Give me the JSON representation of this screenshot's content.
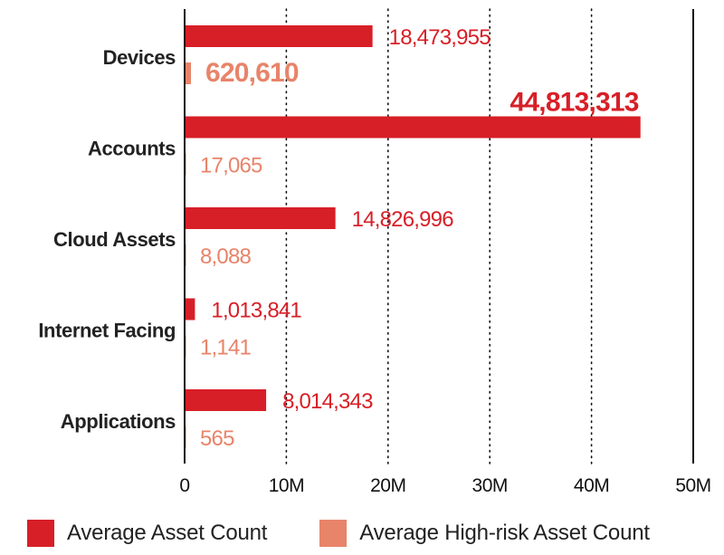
{
  "chart_data": {
    "type": "bar",
    "orientation": "horizontal",
    "categories": [
      "Devices",
      "Accounts",
      "Cloud Assets",
      "Internet Facing",
      "Applications"
    ],
    "series": [
      {
        "name": "Average Asset Count",
        "color": "#d71f27",
        "values": [
          18473955,
          44813313,
          14826996,
          1013841,
          8014343
        ],
        "labels": [
          "18,473,955",
          "44,813,313",
          "14,826,996",
          "1,013,841",
          "8,014,343"
        ]
      },
      {
        "name": "Average High-risk Asset Count",
        "color": "#e8846a",
        "values": [
          620610,
          17065,
          8088,
          1141,
          565
        ],
        "labels": [
          "620,610",
          "17,065",
          "8,088",
          "1,141",
          "565"
        ]
      }
    ],
    "emphasized_labels": [
      "44,813,313",
      "620,610"
    ],
    "x_ticks": [
      "0",
      "10M",
      "20M",
      "30M",
      "40M",
      "50M"
    ],
    "xlim": [
      0,
      50000000
    ],
    "grid": "vertical dotted",
    "legend_position": "bottom"
  }
}
